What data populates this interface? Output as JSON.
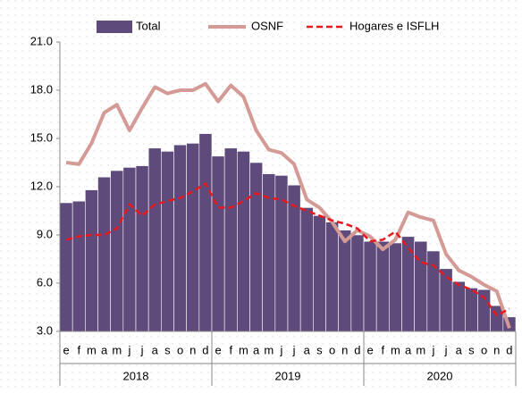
{
  "chart_data": {
    "type": "bar_line",
    "categories": [
      "e",
      "f",
      "m",
      "a",
      "m",
      "j",
      "j",
      "a",
      "s",
      "o",
      "n",
      "d",
      "e",
      "f",
      "m",
      "a",
      "m",
      "j",
      "j",
      "a",
      "s",
      "o",
      "n",
      "d",
      "e",
      "f",
      "m",
      "a",
      "m",
      "j",
      "j",
      "a",
      "s",
      "o",
      "n",
      "d"
    ],
    "years": [
      "2018",
      "2019",
      "2020"
    ],
    "ylim": [
      3,
      21
    ],
    "yticks": [
      {
        "value": 3,
        "label": "3.0"
      },
      {
        "value": 6,
        "label": "6.0"
      },
      {
        "value": 9,
        "label": "9.0"
      },
      {
        "value": 12,
        "label": "12.0"
      },
      {
        "value": 15,
        "label": "15.0"
      },
      {
        "value": 18,
        "label": "18.0"
      },
      {
        "value": 21,
        "label": "21.0"
      }
    ],
    "legend": "top",
    "series": [
      {
        "name": "Total",
        "kind": "bar",
        "color": "#5e4b7c",
        "values": [
          11.0,
          11.1,
          11.8,
          12.6,
          13.0,
          13.2,
          13.3,
          14.4,
          14.2,
          14.6,
          14.7,
          15.3,
          13.9,
          14.4,
          14.2,
          13.5,
          12.8,
          12.7,
          12.1,
          10.7,
          10.2,
          9.8,
          9.3,
          9.0,
          8.6,
          8.6,
          8.5,
          8.9,
          8.6,
          8.0,
          6.9,
          6.1,
          5.7,
          5.6,
          4.6,
          3.9
        ]
      },
      {
        "name": "OSNF",
        "kind": "line",
        "color": "#d49a96",
        "values": [
          13.5,
          13.4,
          14.7,
          16.6,
          17.1,
          15.5,
          16.9,
          18.2,
          17.8,
          18.0,
          18.0,
          18.4,
          17.3,
          18.3,
          17.6,
          15.5,
          14.3,
          14.1,
          13.4,
          11.2,
          10.7,
          9.8,
          8.6,
          9.3,
          8.9,
          8.1,
          8.7,
          10.4,
          10.1,
          9.9,
          7.8,
          6.8,
          6.4,
          5.9,
          5.5,
          3.2
        ]
      },
      {
        "name": "Hogares e ISFLH",
        "kind": "dashed",
        "color": "#e8191e",
        "values": [
          8.7,
          8.9,
          9.0,
          9.0,
          9.4,
          10.9,
          10.2,
          10.9,
          11.1,
          11.3,
          11.7,
          12.2,
          10.7,
          10.7,
          11.1,
          11.6,
          11.3,
          11.2,
          10.8,
          10.5,
          10.2,
          9.9,
          9.7,
          9.4,
          8.6,
          8.7,
          9.2,
          8.2,
          7.3,
          7.1,
          6.4,
          5.9,
          5.6,
          5.1,
          4.0,
          4.4
        ]
      }
    ]
  }
}
